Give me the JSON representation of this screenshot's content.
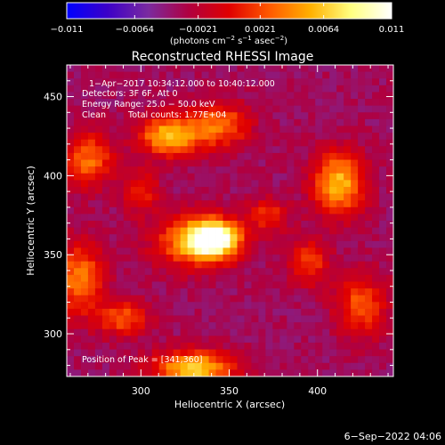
{
  "chart_data": {
    "type": "heatmap",
    "title": "Reconstructed RHESSI Image",
    "xlabel": "Heliocentric X (arcsec)",
    "ylabel": "Heliocentric Y (arcsec)",
    "xlim": [
      258,
      443
    ],
    "ylim": [
      273,
      470
    ],
    "x_ticks": [
      300,
      350,
      400
    ],
    "y_ticks": [
      300,
      350,
      400,
      450
    ],
    "colorbar": {
      "min": -0.011,
      "max": 0.011,
      "tick_values": [
        -0.011,
        -0.0064,
        -0.0021,
        0.0021,
        0.0064,
        0.011
      ],
      "tick_labels": [
        "−0.011",
        "−0.0064",
        "−0.0021",
        "0.0021",
        "0.0064",
        "0.011"
      ],
      "unit_parts": [
        "(photons cm",
        "−2",
        " s",
        "−1",
        " asec",
        "−2",
        ")"
      ]
    },
    "info_lines": [
      "1−Apr−2017 10:34:12.000 to 10:40:12.000",
      "Detectors: 3F 6F, Att 0",
      "Energy Range: 25.0 − 50.0 keV"
    ],
    "clean_label": "Clean",
    "total_counts": "Total counts: 1.77E+04",
    "peak_label": "Position of Peak = [341,360]",
    "peak_position": [
      341,
      360
    ],
    "sources": [
      {
        "x": 341,
        "y": 360,
        "amp": 1.0,
        "sx": 10,
        "sy": 8
      },
      {
        "x": 330,
        "y": 358,
        "amp": 0.55,
        "sx": 16,
        "sy": 12
      },
      {
        "x": 316,
        "y": 425,
        "amp": 0.7,
        "sx": 12,
        "sy": 9
      },
      {
        "x": 345,
        "y": 432,
        "amp": 0.5,
        "sx": 12,
        "sy": 10
      },
      {
        "x": 412,
        "y": 395,
        "amp": 0.7,
        "sx": 10,
        "sy": 14
      },
      {
        "x": 330,
        "y": 278,
        "amp": 0.75,
        "sx": 16,
        "sy": 8
      },
      {
        "x": 265,
        "y": 335,
        "amp": 0.55,
        "sx": 10,
        "sy": 16
      },
      {
        "x": 270,
        "y": 410,
        "amp": 0.5,
        "sx": 10,
        "sy": 12
      },
      {
        "x": 290,
        "y": 310,
        "amp": 0.45,
        "sx": 10,
        "sy": 8
      },
      {
        "x": 425,
        "y": 318,
        "amp": 0.45,
        "sx": 10,
        "sy": 14
      },
      {
        "x": 395,
        "y": 345,
        "amp": 0.4,
        "sx": 8,
        "sy": 10
      },
      {
        "x": 300,
        "y": 390,
        "amp": 0.35,
        "sx": 7,
        "sy": 9
      },
      {
        "x": 372,
        "y": 375,
        "amp": 0.35,
        "sx": 8,
        "sy": 8
      }
    ],
    "background_level": -0.35
  },
  "footer": {
    "date": "6−Sep−2022 04:06"
  },
  "colors": {
    "background": "#000000",
    "colorbar_stops": [
      "#0000ff",
      "#3c00c8",
      "#7a2aa0",
      "#b00040",
      "#e00000",
      "#ff5a00",
      "#ffb000",
      "#ffff80",
      "#ffffff"
    ]
  }
}
